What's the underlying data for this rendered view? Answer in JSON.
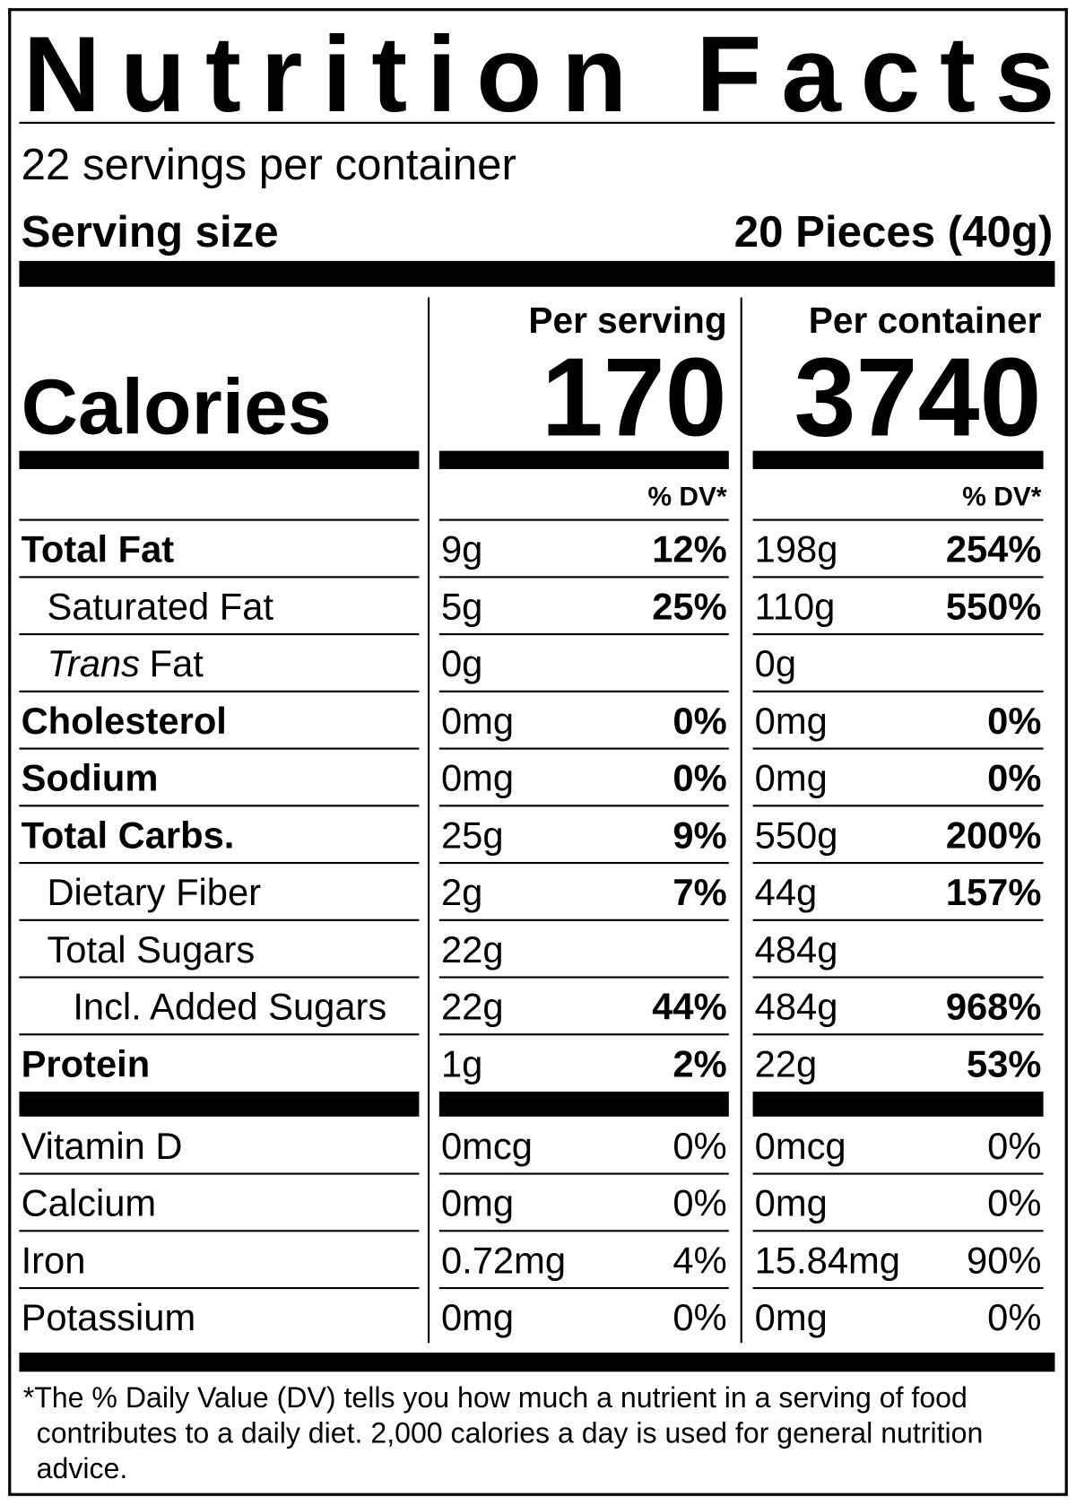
{
  "title": "Nutrition Facts",
  "servings_per_container": "22 servings per container",
  "serving_size": {
    "label": "Serving size",
    "value": "20 Pieces (40g)"
  },
  "calories_label": "Calories",
  "columns": [
    {
      "header": "Per serving",
      "calories": "170",
      "dv_header": "% DV*"
    },
    {
      "header": "Per container",
      "calories": "3740",
      "dv_header": "% DV*"
    }
  ],
  "nutrients": [
    {
      "name": "Total Fat",
      "bold": true,
      "indent": 0,
      "values": [
        {
          "amount": "9g",
          "dv": "12%"
        },
        {
          "amount": "198g",
          "dv": "254%"
        }
      ]
    },
    {
      "name": "Saturated Fat",
      "bold": false,
      "indent": 1,
      "values": [
        {
          "amount": "5g",
          "dv": "25%"
        },
        {
          "amount": "110g",
          "dv": "550%"
        }
      ]
    },
    {
      "name_italic": "Trans",
      "name": "Fat",
      "bold": false,
      "indent": 1,
      "values": [
        {
          "amount": "0g"
        },
        {
          "amount": "0g"
        }
      ]
    },
    {
      "name": "Cholesterol",
      "bold": true,
      "indent": 0,
      "values": [
        {
          "amount": "0mg",
          "dv": "0%"
        },
        {
          "amount": "0mg",
          "dv": "0%"
        }
      ]
    },
    {
      "name": "Sodium",
      "bold": true,
      "indent": 0,
      "values": [
        {
          "amount": "0mg",
          "dv": "0%"
        },
        {
          "amount": "0mg",
          "dv": "0%"
        }
      ]
    },
    {
      "name": "Total Carbs.",
      "bold": true,
      "indent": 0,
      "values": [
        {
          "amount": "25g",
          "dv": "9%"
        },
        {
          "amount": "550g",
          "dv": "200%"
        }
      ]
    },
    {
      "name": "Dietary Fiber",
      "bold": false,
      "indent": 1,
      "values": [
        {
          "amount": "2g",
          "dv": "7%"
        },
        {
          "amount": "44g",
          "dv": "157%"
        }
      ]
    },
    {
      "name": "Total Sugars",
      "bold": false,
      "indent": 1,
      "values": [
        {
          "amount": "22g"
        },
        {
          "amount": "484g"
        }
      ]
    },
    {
      "name": "Incl. Added Sugars",
      "bold": false,
      "indent": 2,
      "values": [
        {
          "amount": "22g",
          "dv": "44%"
        },
        {
          "amount": "484g",
          "dv": "968%"
        }
      ]
    },
    {
      "name": "Protein",
      "bold": true,
      "indent": 0,
      "values": [
        {
          "amount": "1g",
          "dv": "2%"
        },
        {
          "amount": "22g",
          "dv": "53%"
        }
      ]
    }
  ],
  "vitamins": [
    {
      "name": "Vitamin D",
      "values": [
        {
          "amount": "0mcg",
          "dv": "0%"
        },
        {
          "amount": "0mcg",
          "dv": "0%"
        }
      ]
    },
    {
      "name": "Calcium",
      "values": [
        {
          "amount": "0mg",
          "dv": "0%"
        },
        {
          "amount": "0mg",
          "dv": "0%"
        }
      ]
    },
    {
      "name": "Iron",
      "values": [
        {
          "amount": "0.72mg",
          "dv": "4%"
        },
        {
          "amount": "15.84mg",
          "dv": "90%"
        }
      ]
    },
    {
      "name": "Potassium",
      "values": [
        {
          "amount": "0mg",
          "dv": "0%"
        },
        {
          "amount": "0mg",
          "dv": "0%"
        }
      ]
    }
  ],
  "footnote": [
    "*The % Daily Value (DV) tells you how much a nutrient in a serving of food",
    "contributes to a daily diet. 2,000 calories a day is used for general nutrition",
    "advice."
  ]
}
